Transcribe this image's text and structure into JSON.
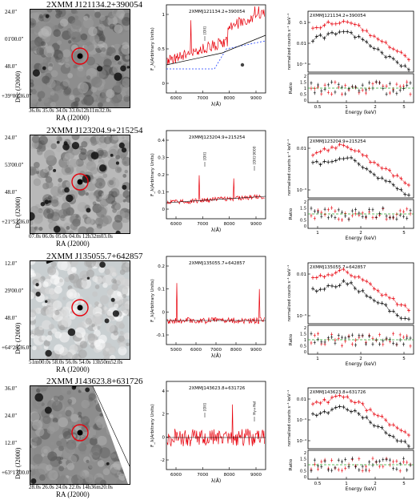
{
  "panels": [
    {
      "title": "2XMM J121134.2+390054",
      "dec_ticks": [
        "24.0\"",
        "01'00.0\"",
        "48.0\"",
        "+39°00'36.0\""
      ],
      "ra_ticks": "36.0s   35.0s   34.0s   33.0s12h11m32.0s",
      "spectrum_label": "2XMMJ121134.2+390054",
      "spectrum_annotations": [
        "[OII]"
      ],
      "spectrum_yticks": [
        "0",
        "0.5",
        "1"
      ],
      "spectrum_xticks": [
        "6000",
        "7000",
        "8000",
        "9000"
      ],
      "xray_label": "2XMMJ121134.2+390054",
      "xray_yticks": [
        "10⁻³",
        "0.01",
        "0.1"
      ],
      "ratio_yticks": [
        "0",
        "0.5",
        "1",
        "1.5",
        "2"
      ],
      "xray_xticks": [
        "0.5",
        "1",
        "2",
        "5"
      ]
    },
    {
      "title": "2XMM J123204.9+215254",
      "dec_ticks": [
        "24.0\"",
        "53'00.0\"",
        "48.0\"",
        "+21°52'36.0\""
      ],
      "ra_ticks": "07.0s  06.0s  05.0s  04.0s  12h32m03.0s",
      "spectrum_label": "2XMMJ123204.9+215254",
      "spectrum_annotations": [
        "[OII]",
        "[OII] 9000"
      ],
      "spectrum_yticks": [
        "0",
        "0.1",
        "0.2",
        "0.3",
        "0.4"
      ],
      "spectrum_xticks": [
        "6000",
        "7000",
        "8000",
        "9000"
      ],
      "xray_label": "2XMMJ123204.9+215254",
      "xray_yticks": [
        "10⁻³",
        "0.01"
      ],
      "ratio_yticks": [
        "0",
        "0.5",
        "1",
        "1.5",
        "2"
      ],
      "xray_xticks": [
        "1",
        "2",
        "5"
      ]
    },
    {
      "title": "2XMM J135055.7+642857",
      "dec_ticks": [
        "12.0\"",
        "29'00.0\"",
        "48.0\"",
        "+64°28'36.0\""
      ],
      "ra_ticks": "51m00.0s  58.0s    56.0s  54.0s  13h50m52.0s",
      "spectrum_label": "2XMMJ135055.7+642857",
      "spectrum_annotations": [],
      "spectrum_yticks": [
        "-0.1",
        "0",
        "0.1",
        "0.2"
      ],
      "spectrum_xticks": [
        "5000",
        "6000",
        "7000",
        "8000",
        "9000"
      ],
      "xray_label": "2XMMJ135055.7+642857",
      "xray_yticks": [
        "10⁻³",
        "0.01"
      ],
      "ratio_yticks": [
        "0",
        "0.5",
        "1",
        "1.5",
        "2"
      ],
      "xray_xticks": [
        "1",
        "2",
        "5"
      ]
    },
    {
      "title": "2XMM J143623.8+631726",
      "dec_ticks": [
        "36.0\"",
        "24.0\"",
        "12.0\"",
        "+63°17'00.0\""
      ],
      "ra_ticks": "28.0s   26.0s   24.0s   22.0s  14h36m20.0s",
      "spectrum_label": "2XMMJ143623.8+631726",
      "spectrum_annotations": [
        "[OII]",
        "Hγ+HeI"
      ],
      "spectrum_yticks": [
        "-2",
        "0",
        "2",
        "4"
      ],
      "spectrum_xticks": [
        "6000",
        "7000",
        "8000",
        "9000"
      ],
      "xray_label": "2XMMJ143623.8+631726",
      "xray_yticks": [
        "10⁻⁴",
        "10⁻³",
        "0.01"
      ],
      "ratio_yticks": [
        "0",
        "0.5",
        "1",
        "1.5",
        "2"
      ],
      "xray_xticks": [
        "0.5",
        "1",
        "2",
        "5"
      ]
    }
  ],
  "axis_labels": {
    "dec": "Dec (J2000)",
    "ra": "RA (J2000)",
    "flux": "F_λ(Arbitrary Units)",
    "lambda": "λ(Å)",
    "counts": "normalized counts s⁻¹ keV⁻¹",
    "ratio": "Ratio",
    "energy": "Energy (keV)"
  },
  "colors": {
    "spectrum": "#e8000b",
    "model": "#000000",
    "template": "#1f3fff",
    "pn": "#000000",
    "mos": "#e8000b",
    "fit": "#2ea82e"
  }
}
